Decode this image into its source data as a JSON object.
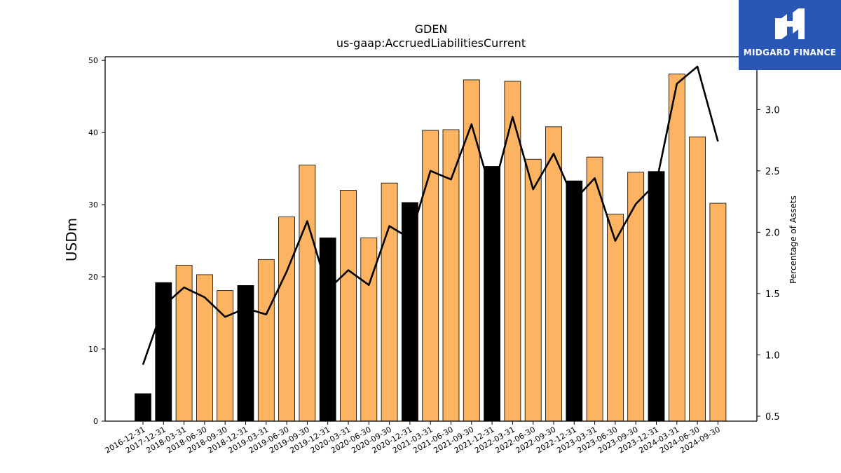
{
  "header": {
    "title": "GDEN",
    "subtitle": "us-gaap:AccruedLiabilitiesCurrent"
  },
  "logo": {
    "text": "MIDGARD FINANCE",
    "color": "#2a56b5"
  },
  "colors": {
    "bar_annual": "#000000",
    "bar_quarterly": "#fdb462",
    "line": "#000000"
  },
  "chart_data": {
    "type": "bar",
    "categories": [
      "2016-12-31",
      "2017-12-31",
      "2018-03-31",
      "2018-06-30",
      "2018-09-30",
      "2018-12-31",
      "2019-03-31",
      "2019-06-30",
      "2019-09-30",
      "2019-12-31",
      "2020-03-31",
      "2020-06-30",
      "2020-09-30",
      "2020-12-31",
      "2021-03-31",
      "2021-06-30",
      "2021-09-30",
      "2021-12-31",
      "2022-03-31",
      "2022-06-30",
      "2022-09-30",
      "2022-12-31",
      "2023-03-31",
      "2023-06-30",
      "2023-09-30",
      "2023-12-31",
      "2024-03-31",
      "2024-06-30",
      "2024-09-30"
    ],
    "series": [
      {
        "values": [
          3.8,
          19.2,
          21.6,
          20.3,
          18.1,
          18.8,
          22.4,
          28.3,
          35.5,
          25.4,
          32.0,
          25.4,
          33.0,
          30.3,
          40.3,
          40.4,
          47.3,
          35.3,
          47.1,
          36.3,
          40.8,
          33.3,
          36.6,
          28.7,
          34.5,
          34.6,
          48.1,
          39.4,
          30.2
        ],
        "period": [
          "annual",
          "annual",
          "quarterly",
          "quarterly",
          "quarterly",
          "annual",
          "quarterly",
          "quarterly",
          "quarterly",
          "annual",
          "quarterly",
          "quarterly",
          "quarterly",
          "annual",
          "quarterly",
          "quarterly",
          "quarterly",
          "annual",
          "quarterly",
          "quarterly",
          "quarterly",
          "annual",
          "quarterly",
          "quarterly",
          "quarterly",
          "annual",
          "quarterly",
          "quarterly",
          "quarterly"
        ]
      },
      {
        "type": "line",
        "axis": "right",
        "values": [
          0.92,
          1.4,
          1.55,
          1.47,
          1.31,
          1.38,
          1.33,
          1.68,
          2.09,
          1.53,
          1.69,
          1.57,
          2.05,
          1.95,
          2.5,
          2.43,
          2.88,
          2.3,
          2.94,
          2.35,
          2.64,
          2.26,
          2.44,
          1.93,
          2.23,
          2.4,
          3.21,
          3.35,
          2.74
        ]
      }
    ],
    "xlabel": "",
    "ylabel": "USDm",
    "y2label": "Percentage of Assets",
    "ylim": [
      0,
      50.5
    ],
    "y2lim": [
      0.46,
      3.43
    ],
    "yticks": [
      0,
      10,
      20,
      30,
      40,
      50
    ],
    "y2ticks": [
      "0.5",
      "1.0",
      "1.5",
      "2.0",
      "2.5",
      "3.0"
    ],
    "grid": false,
    "legend": "none"
  }
}
